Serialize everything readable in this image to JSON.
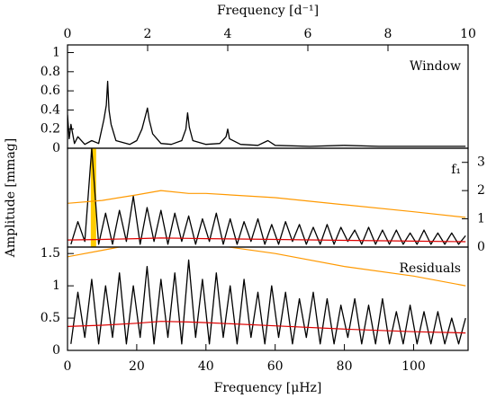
{
  "chart_data": [
    {
      "type": "line",
      "label": "Window",
      "x2label": "Frequency [d⁻¹]",
      "x2lim": [
        0,
        10
      ],
      "x2ticks": [
        0,
        2,
        4,
        6,
        8,
        10
      ],
      "xlim": [
        0,
        115.74
      ],
      "ylim": [
        0,
        1.08
      ],
      "yticks": [
        0,
        0.2,
        0.4,
        0.6,
        0.8,
        1
      ],
      "y_side": "left",
      "series": [
        {
          "color": "#000000",
          "x": [
            0,
            0.5,
            1,
            2,
            3,
            5,
            7,
            9,
            10.5,
            11.2,
            11.6,
            12,
            12.6,
            14,
            16,
            18,
            20,
            21.5,
            22.6,
            23.1,
            23.6,
            24.6,
            27,
            30,
            33,
            34.2,
            34.7,
            35.2,
            36.2,
            40,
            44,
            45.8,
            46.3,
            46.8,
            50,
            55,
            57.9,
            60,
            70,
            80,
            90,
            100,
            110,
            115
          ],
          "values": [
            0.35,
            0.1,
            0.25,
            0.05,
            0.12,
            0.04,
            0.08,
            0.05,
            0.3,
            0.45,
            0.7,
            0.4,
            0.25,
            0.08,
            0.06,
            0.04,
            0.08,
            0.2,
            0.35,
            0.42,
            0.3,
            0.15,
            0.05,
            0.04,
            0.08,
            0.2,
            0.37,
            0.22,
            0.08,
            0.04,
            0.05,
            0.12,
            0.2,
            0.1,
            0.04,
            0.03,
            0.08,
            0.03,
            0.02,
            0.03,
            0.02,
            0.02,
            0.02,
            0.02
          ]
        }
      ]
    },
    {
      "type": "line",
      "label": "f₁",
      "ylabel": "Amplitude [mmag]",
      "xlim": [
        0,
        115.74
      ],
      "ylim": [
        0,
        3.5
      ],
      "yticks": [
        0,
        1,
        2,
        3
      ],
      "y_side": "right",
      "highlight": {
        "x": 7.5,
        "color": "#ffcc00"
      },
      "series": [
        {
          "color": "#000000",
          "x": [
            1,
            3,
            5,
            7,
            9,
            11,
            13,
            15,
            17,
            19,
            21,
            23,
            25,
            27,
            29,
            31,
            33,
            35,
            37,
            39,
            41,
            43,
            45,
            47,
            49,
            51,
            53,
            55,
            57,
            59,
            61,
            63,
            65,
            67,
            69,
            71,
            73,
            75,
            77,
            79,
            81,
            83,
            85,
            87,
            89,
            91,
            93,
            95,
            97,
            99,
            101,
            103,
            105,
            107,
            109,
            111,
            113,
            115
          ],
          "values": [
            0.1,
            0.9,
            0.2,
            3.5,
            0.1,
            1.2,
            0.1,
            1.3,
            0.2,
            1.8,
            0.1,
            1.4,
            0.2,
            1.3,
            0.1,
            1.2,
            0.2,
            1.1,
            0.1,
            1.0,
            0.2,
            1.2,
            0.1,
            1.0,
            0.1,
            0.9,
            0.2,
            1.0,
            0.1,
            0.8,
            0.1,
            0.9,
            0.2,
            0.8,
            0.1,
            0.7,
            0.1,
            0.8,
            0.1,
            0.7,
            0.2,
            0.6,
            0.1,
            0.7,
            0.1,
            0.6,
            0.1,
            0.6,
            0.1,
            0.5,
            0.1,
            0.6,
            0.1,
            0.5,
            0.1,
            0.5,
            0.1,
            0.4
          ]
        },
        {
          "color": "#ff9900",
          "x": [
            0,
            10,
            20,
            27,
            35,
            40,
            60,
            80,
            100,
            115
          ],
          "values": [
            1.55,
            1.65,
            1.85,
            2.0,
            1.9,
            1.9,
            1.75,
            1.5,
            1.25,
            1.05
          ]
        },
        {
          "color": "#dd0000",
          "x": [
            0,
            10,
            20,
            27,
            35,
            40,
            60,
            80,
            100,
            115
          ],
          "values": [
            0.25,
            0.27,
            0.3,
            0.32,
            0.31,
            0.3,
            0.27,
            0.24,
            0.21,
            0.19
          ]
        }
      ]
    },
    {
      "type": "line",
      "label": "Residuals",
      "xlabel": "Frequency [μHz]",
      "xlim": [
        0,
        115.74
      ],
      "xticks": [
        0,
        20,
        40,
        60,
        80,
        100
      ],
      "ylim": [
        0,
        1.6
      ],
      "yticks": [
        0,
        0.5,
        1,
        1.5
      ],
      "y_side": "left",
      "series": [
        {
          "color": "#000000",
          "x": [
            1,
            3,
            5,
            7,
            9,
            11,
            13,
            15,
            17,
            19,
            21,
            23,
            25,
            27,
            29,
            31,
            33,
            35,
            37,
            39,
            41,
            43,
            45,
            47,
            49,
            51,
            53,
            55,
            57,
            59,
            61,
            63,
            65,
            67,
            69,
            71,
            73,
            75,
            77,
            79,
            81,
            83,
            85,
            87,
            89,
            91,
            93,
            95,
            97,
            99,
            101,
            103,
            105,
            107,
            109,
            111,
            113,
            115
          ],
          "values": [
            0.1,
            0.9,
            0.2,
            1.1,
            0.1,
            1.0,
            0.2,
            1.2,
            0.1,
            1.0,
            0.2,
            1.3,
            0.1,
            1.1,
            0.2,
            1.2,
            0.1,
            1.4,
            0.2,
            1.1,
            0.1,
            1.2,
            0.2,
            1.0,
            0.1,
            1.1,
            0.2,
            0.9,
            0.1,
            1.0,
            0.2,
            0.9,
            0.1,
            0.8,
            0.2,
            0.9,
            0.1,
            0.8,
            0.1,
            0.7,
            0.2,
            0.8,
            0.1,
            0.7,
            0.1,
            0.8,
            0.1,
            0.6,
            0.1,
            0.7,
            0.1,
            0.6,
            0.1,
            0.6,
            0.1,
            0.5,
            0.1,
            0.5
          ]
        },
        {
          "color": "#ff9900",
          "x": [
            0,
            10,
            20,
            27,
            35,
            40,
            60,
            80,
            100,
            115
          ],
          "values": [
            1.45,
            1.55,
            1.65,
            1.7,
            1.7,
            1.65,
            1.5,
            1.3,
            1.15,
            1.0
          ]
        },
        {
          "color": "#dd0000",
          "x": [
            0,
            10,
            20,
            27,
            35,
            40,
            60,
            80,
            100,
            115
          ],
          "values": [
            0.37,
            0.39,
            0.42,
            0.45,
            0.44,
            0.43,
            0.38,
            0.33,
            0.29,
            0.27
          ]
        }
      ]
    }
  ]
}
